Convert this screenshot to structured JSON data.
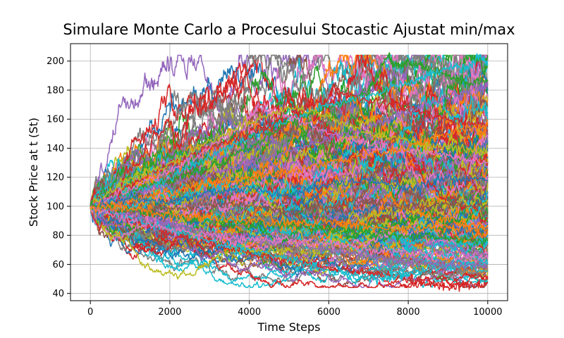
{
  "chart_data": {
    "type": "line",
    "title": "Simulare Monte Carlo a Procesului Stocastic Ajustat min/max",
    "xlabel": "Time Steps",
    "ylabel": "Stock Price at t (St)",
    "xlim": [
      -500,
      10500
    ],
    "ylim": [
      35,
      212
    ],
    "x_ticks": [
      0,
      2000,
      4000,
      6000,
      8000,
      10000
    ],
    "y_ticks": [
      40,
      60,
      80,
      100,
      120,
      140,
      160,
      180,
      200
    ],
    "x_tick_labels": [
      "0",
      "2000",
      "4000",
      "6000",
      "8000",
      "10000"
    ],
    "y_tick_labels": [
      "40",
      "60",
      "80",
      "100",
      "120",
      "140",
      "160",
      "180",
      "200"
    ],
    "grid": true,
    "legend": "none",
    "simulation": {
      "start_value": 100,
      "steps": 10000,
      "visible_range": {
        "min": 44,
        "max": 204
      }
    },
    "series_colors": [
      "#1f77b4",
      "#ff7f0e",
      "#2ca02c",
      "#d62728",
      "#9467bd",
      "#8c564b",
      "#e377c2",
      "#7f7f7f",
      "#bcbd22",
      "#17becf"
    ],
    "series": [
      {
        "color": "#2ca02c",
        "x": [
          0,
          1000,
          2000,
          3000,
          4000,
          5000,
          6000,
          7000,
          7500,
          7700,
          8000,
          8500,
          9000,
          9500,
          10000
        ],
        "values": [
          100,
          110,
          118,
          126,
          140,
          158,
          168,
          178,
          204,
          196,
          200,
          195,
          190,
          185,
          187
        ]
      },
      {
        "color": "#17becf",
        "x": [
          0,
          1000,
          2000,
          3000,
          4000,
          5000,
          6000,
          7000,
          8000,
          8500,
          9000,
          9500,
          9800,
          10000
        ],
        "values": [
          100,
          108,
          120,
          134,
          148,
          160,
          170,
          176,
          185,
          190,
          195,
          196,
          203,
          198
        ]
      },
      {
        "color": "#d62728",
        "x": [
          0,
          1000,
          2000,
          3000,
          4000,
          5000,
          6000,
          6100,
          7000,
          8000,
          9000,
          10000
        ],
        "values": [
          100,
          114,
          128,
          140,
          150,
          162,
          175,
          181,
          172,
          168,
          160,
          155
        ]
      },
      {
        "color": "#e377c2",
        "x": [
          0,
          1000,
          2000,
          3000,
          4000,
          4200,
          5000,
          6000,
          7000,
          8000,
          9000,
          10000
        ],
        "values": [
          100,
          112,
          124,
          140,
          160,
          169,
          162,
          150,
          142,
          138,
          135,
          130
        ]
      },
      {
        "color": "#bcbd22",
        "x": [
          0,
          1000,
          2000,
          3000,
          4000,
          5000,
          6000,
          7000,
          8000,
          9000,
          10000
        ],
        "values": [
          100,
          120,
          130,
          145,
          158,
          168,
          162,
          150,
          145,
          140,
          138
        ]
      },
      {
        "color": "#9467bd",
        "x": [
          0,
          1000,
          2000,
          3000,
          4000,
          5000,
          6000,
          7000,
          8000,
          9000,
          10000
        ],
        "values": [
          100,
          108,
          115,
          122,
          130,
          138,
          146,
          155,
          165,
          175,
          184
        ]
      },
      {
        "color": "#ff7f0e",
        "x": [
          0,
          1000,
          2000,
          3000,
          4000,
          5000,
          6000,
          7000,
          8000,
          9000,
          10000
        ],
        "values": [
          100,
          104,
          110,
          116,
          120,
          124,
          130,
          135,
          140,
          150,
          156
        ]
      },
      {
        "color": "#1f77b4",
        "x": [
          0,
          1000,
          2000,
          3000,
          4000,
          5000,
          6000,
          7000,
          8000,
          9000,
          10000
        ],
        "values": [
          100,
          106,
          102,
          110,
          112,
          108,
          115,
          118,
          112,
          120,
          118
        ]
      },
      {
        "color": "#8c564b",
        "x": [
          0,
          1000,
          2000,
          3000,
          4000,
          5000,
          6000,
          7000,
          8000,
          9000,
          10000
        ],
        "values": [
          100,
          96,
          98,
          102,
          100,
          96,
          100,
          104,
          98,
          102,
          100
        ]
      },
      {
        "color": "#7f7f7f",
        "x": [
          0,
          1000,
          2000,
          3000,
          4000,
          5000,
          6000,
          7000,
          8000,
          9000,
          10000
        ],
        "values": [
          100,
          92,
          86,
          80,
          76,
          72,
          70,
          66,
          62,
          58,
          55
        ]
      },
      {
        "color": "#d62728",
        "x": [
          0,
          1000,
          2000,
          3000,
          4000,
          5000,
          6000,
          7000,
          8000,
          8500,
          9000,
          9500,
          10000
        ],
        "values": [
          100,
          90,
          82,
          74,
          68,
          62,
          58,
          54,
          50,
          46,
          44,
          46,
          47
        ]
      },
      {
        "color": "#17becf",
        "x": [
          0,
          1000,
          2000,
          3000,
          4000,
          5000,
          6000,
          7000,
          7500,
          8000,
          9000,
          10000
        ],
        "values": [
          100,
          92,
          84,
          76,
          70,
          64,
          56,
          50,
          50,
          54,
          58,
          60
        ]
      },
      {
        "color": "#9467bd",
        "x": [
          0,
          1000,
          2000,
          3000,
          4000,
          5000,
          6000,
          7000,
          8000,
          9000,
          10000
        ],
        "values": [
          100,
          94,
          88,
          82,
          78,
          74,
          70,
          66,
          62,
          60,
          58
        ]
      },
      {
        "color": "#2ca02c",
        "x": [
          0,
          1000,
          2000,
          3000,
          4000,
          5000,
          6000,
          7000,
          8000,
          9000,
          10000
        ],
        "values": [
          100,
          97,
          94,
          90,
          88,
          86,
          84,
          82,
          80,
          78,
          76
        ]
      },
      {
        "color": "#e377c2",
        "x": [
          0,
          1000,
          2000,
          3000,
          4000,
          5000,
          6000,
          7000,
          8000,
          9000,
          10000
        ],
        "values": [
          100,
          90,
          84,
          80,
          78,
          76,
          74,
          70,
          68,
          66,
          64
        ]
      },
      {
        "color": "#ff7f0e",
        "x": [
          0,
          1000,
          2000,
          3000,
          4000,
          5000,
          6000,
          7000,
          8000,
          9000,
          10000
        ],
        "values": [
          100,
          98,
          94,
          92,
          90,
          88,
          90,
          86,
          84,
          86,
          84
        ]
      }
    ]
  }
}
